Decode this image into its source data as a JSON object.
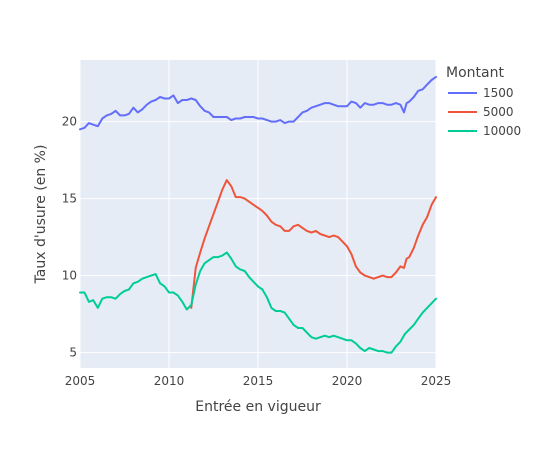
{
  "chart_data": {
    "type": "line",
    "xlabel": "Entrée en vigueur",
    "ylabel": "Taux d'usure (en %)",
    "xlim": [
      2005,
      2025
    ],
    "ylim": [
      4,
      24
    ],
    "xticks": [
      2005,
      2010,
      2015,
      2020,
      2025
    ],
    "yticks": [
      5,
      10,
      15,
      20
    ],
    "grid": true,
    "background": "#E5ECF6",
    "legend": {
      "title": "Montant",
      "position": "right"
    },
    "series": [
      {
        "name": "1500",
        "color": "#636EFA",
        "points": [
          [
            2005.0,
            19.5
          ],
          [
            2005.25,
            19.6
          ],
          [
            2005.5,
            19.9
          ],
          [
            2005.75,
            19.8
          ],
          [
            2006.0,
            19.7
          ],
          [
            2006.25,
            20.2
          ],
          [
            2006.5,
            20.4
          ],
          [
            2006.75,
            20.5
          ],
          [
            2007.0,
            20.7
          ],
          [
            2007.25,
            20.4
          ],
          [
            2007.5,
            20.4
          ],
          [
            2007.75,
            20.5
          ],
          [
            2008.0,
            20.9
          ],
          [
            2008.25,
            20.6
          ],
          [
            2008.5,
            20.8
          ],
          [
            2008.75,
            21.1
          ],
          [
            2009.0,
            21.3
          ],
          [
            2009.25,
            21.4
          ],
          [
            2009.5,
            21.6
          ],
          [
            2009.75,
            21.5
          ],
          [
            2010.0,
            21.5
          ],
          [
            2010.25,
            21.7
          ],
          [
            2010.5,
            21.2
          ],
          [
            2010.75,
            21.4
          ],
          [
            2011.0,
            21.4
          ],
          [
            2011.25,
            21.5
          ],
          [
            2011.5,
            21.4
          ],
          [
            2011.75,
            21.0
          ],
          [
            2012.0,
            20.7
          ],
          [
            2012.25,
            20.6
          ],
          [
            2012.5,
            20.3
          ],
          [
            2012.75,
            20.3
          ],
          [
            2013.0,
            20.3
          ],
          [
            2013.25,
            20.3
          ],
          [
            2013.5,
            20.1
          ],
          [
            2013.75,
            20.2
          ],
          [
            2014.0,
            20.2
          ],
          [
            2014.25,
            20.3
          ],
          [
            2014.5,
            20.3
          ],
          [
            2014.75,
            20.3
          ],
          [
            2015.0,
            20.2
          ],
          [
            2015.25,
            20.2
          ],
          [
            2015.5,
            20.1
          ],
          [
            2015.75,
            20.0
          ],
          [
            2016.0,
            20.0
          ],
          [
            2016.25,
            20.1
          ],
          [
            2016.5,
            19.9
          ],
          [
            2016.75,
            20.0
          ],
          [
            2017.0,
            20.0
          ],
          [
            2017.25,
            20.3
          ],
          [
            2017.5,
            20.6
          ],
          [
            2017.75,
            20.7
          ],
          [
            2018.0,
            20.9
          ],
          [
            2018.25,
            21.0
          ],
          [
            2018.5,
            21.1
          ],
          [
            2018.75,
            21.2
          ],
          [
            2019.0,
            21.2
          ],
          [
            2019.25,
            21.1
          ],
          [
            2019.5,
            21.0
          ],
          [
            2019.75,
            21.0
          ],
          [
            2020.0,
            21.0
          ],
          [
            2020.25,
            21.3
          ],
          [
            2020.5,
            21.2
          ],
          [
            2020.75,
            20.9
          ],
          [
            2021.0,
            21.2
          ],
          [
            2021.25,
            21.1
          ],
          [
            2021.5,
            21.1
          ],
          [
            2021.75,
            21.2
          ],
          [
            2022.0,
            21.2
          ],
          [
            2022.25,
            21.1
          ],
          [
            2022.5,
            21.1
          ],
          [
            2022.75,
            21.2
          ],
          [
            2023.0,
            21.1
          ],
          [
            2023.2,
            20.6
          ],
          [
            2023.35,
            21.2
          ],
          [
            2023.5,
            21.3
          ],
          [
            2023.75,
            21.6
          ],
          [
            2024.0,
            22.0
          ],
          [
            2024.25,
            22.1
          ],
          [
            2024.5,
            22.4
          ],
          [
            2024.75,
            22.7
          ],
          [
            2025.0,
            22.9
          ]
        ]
      },
      {
        "name": "5000",
        "color": "#EF553B",
        "points": [
          [
            2011.25,
            7.9
          ],
          [
            2011.5,
            10.5
          ],
          [
            2011.75,
            11.5
          ],
          [
            2012.0,
            12.4
          ],
          [
            2012.25,
            13.2
          ],
          [
            2012.5,
            14.0
          ],
          [
            2012.75,
            14.8
          ],
          [
            2013.0,
            15.6
          ],
          [
            2013.25,
            16.2
          ],
          [
            2013.5,
            15.8
          ],
          [
            2013.75,
            15.1
          ],
          [
            2014.0,
            15.1
          ],
          [
            2014.25,
            15.0
          ],
          [
            2014.5,
            14.8
          ],
          [
            2014.75,
            14.6
          ],
          [
            2015.0,
            14.4
          ],
          [
            2015.25,
            14.2
          ],
          [
            2015.5,
            13.9
          ],
          [
            2015.75,
            13.5
          ],
          [
            2016.0,
            13.3
          ],
          [
            2016.25,
            13.2
          ],
          [
            2016.5,
            12.9
          ],
          [
            2016.75,
            12.9
          ],
          [
            2017.0,
            13.2
          ],
          [
            2017.25,
            13.3
          ],
          [
            2017.5,
            13.1
          ],
          [
            2017.75,
            12.9
          ],
          [
            2018.0,
            12.8
          ],
          [
            2018.25,
            12.9
          ],
          [
            2018.5,
            12.7
          ],
          [
            2018.75,
            12.6
          ],
          [
            2019.0,
            12.5
          ],
          [
            2019.25,
            12.6
          ],
          [
            2019.5,
            12.5
          ],
          [
            2019.75,
            12.2
          ],
          [
            2020.0,
            11.9
          ],
          [
            2020.25,
            11.4
          ],
          [
            2020.5,
            10.6
          ],
          [
            2020.75,
            10.2
          ],
          [
            2021.0,
            10.0
          ],
          [
            2021.25,
            9.9
          ],
          [
            2021.5,
            9.8
          ],
          [
            2021.75,
            9.9
          ],
          [
            2022.0,
            10.0
          ],
          [
            2022.25,
            9.9
          ],
          [
            2022.5,
            9.9
          ],
          [
            2022.75,
            10.2
          ],
          [
            2023.0,
            10.6
          ],
          [
            2023.2,
            10.5
          ],
          [
            2023.35,
            11.1
          ],
          [
            2023.5,
            11.2
          ],
          [
            2023.75,
            11.8
          ],
          [
            2024.0,
            12.6
          ],
          [
            2024.25,
            13.3
          ],
          [
            2024.5,
            13.8
          ],
          [
            2024.75,
            14.6
          ],
          [
            2025.0,
            15.1
          ]
        ]
      },
      {
        "name": "10000",
        "color": "#00CC96",
        "points": [
          [
            2005.0,
            8.9
          ],
          [
            2005.25,
            8.9
          ],
          [
            2005.5,
            8.3
          ],
          [
            2005.75,
            8.4
          ],
          [
            2006.0,
            7.9
          ],
          [
            2006.25,
            8.5
          ],
          [
            2006.5,
            8.6
          ],
          [
            2006.75,
            8.6
          ],
          [
            2007.0,
            8.5
          ],
          [
            2007.25,
            8.8
          ],
          [
            2007.5,
            9.0
          ],
          [
            2007.75,
            9.1
          ],
          [
            2008.0,
            9.5
          ],
          [
            2008.25,
            9.6
          ],
          [
            2008.5,
            9.8
          ],
          [
            2008.75,
            9.9
          ],
          [
            2009.0,
            10.0
          ],
          [
            2009.25,
            10.1
          ],
          [
            2009.5,
            9.5
          ],
          [
            2009.75,
            9.3
          ],
          [
            2010.0,
            8.9
          ],
          [
            2010.25,
            8.9
          ],
          [
            2010.5,
            8.7
          ],
          [
            2010.75,
            8.3
          ],
          [
            2011.0,
            7.8
          ],
          [
            2011.25,
            8.1
          ],
          [
            2011.5,
            9.4
          ],
          [
            2011.75,
            10.3
          ],
          [
            2012.0,
            10.8
          ],
          [
            2012.25,
            11.0
          ],
          [
            2012.5,
            11.2
          ],
          [
            2012.75,
            11.2
          ],
          [
            2013.0,
            11.3
          ],
          [
            2013.25,
            11.5
          ],
          [
            2013.5,
            11.1
          ],
          [
            2013.75,
            10.6
          ],
          [
            2014.0,
            10.4
          ],
          [
            2014.25,
            10.3
          ],
          [
            2014.5,
            9.9
          ],
          [
            2014.75,
            9.6
          ],
          [
            2015.0,
            9.3
          ],
          [
            2015.25,
            9.1
          ],
          [
            2015.5,
            8.6
          ],
          [
            2015.75,
            7.9
          ],
          [
            2016.0,
            7.7
          ],
          [
            2016.25,
            7.7
          ],
          [
            2016.5,
            7.6
          ],
          [
            2016.75,
            7.2
          ],
          [
            2017.0,
            6.8
          ],
          [
            2017.25,
            6.6
          ],
          [
            2017.5,
            6.6
          ],
          [
            2017.75,
            6.3
          ],
          [
            2018.0,
            6.0
          ],
          [
            2018.25,
            5.9
          ],
          [
            2018.5,
            6.0
          ],
          [
            2018.75,
            6.1
          ],
          [
            2019.0,
            6.0
          ],
          [
            2019.25,
            6.1
          ],
          [
            2019.5,
            6.0
          ],
          [
            2019.75,
            5.9
          ],
          [
            2020.0,
            5.8
          ],
          [
            2020.25,
            5.8
          ],
          [
            2020.5,
            5.6
          ],
          [
            2020.75,
            5.3
          ],
          [
            2021.0,
            5.1
          ],
          [
            2021.25,
            5.3
          ],
          [
            2021.5,
            5.2
          ],
          [
            2021.75,
            5.1
          ],
          [
            2022.0,
            5.1
          ],
          [
            2022.25,
            5.0
          ],
          [
            2022.5,
            5.0
          ],
          [
            2022.75,
            5.4
          ],
          [
            2023.0,
            5.7
          ],
          [
            2023.25,
            6.2
          ],
          [
            2023.5,
            6.5
          ],
          [
            2023.75,
            6.8
          ],
          [
            2024.0,
            7.2
          ],
          [
            2024.25,
            7.6
          ],
          [
            2024.5,
            7.9
          ],
          [
            2024.75,
            8.2
          ],
          [
            2025.0,
            8.5
          ]
        ]
      }
    ]
  }
}
